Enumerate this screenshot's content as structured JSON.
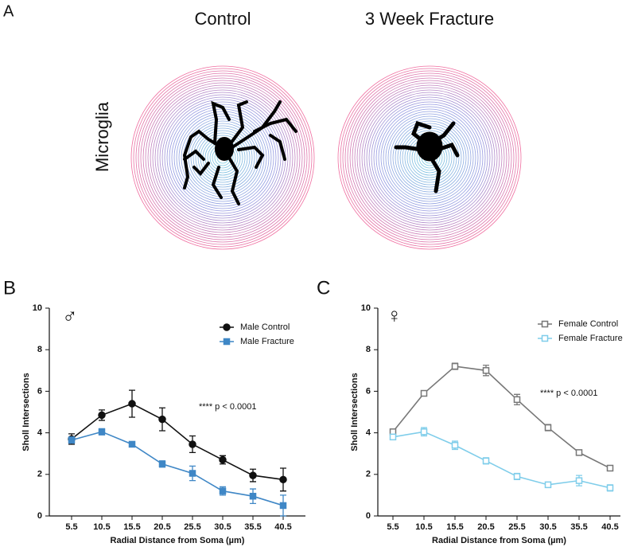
{
  "figure": {
    "panel_a": {
      "label": "A",
      "columns": [
        "Control",
        "3 Week Fracture"
      ],
      "row_label": "Microglia"
    }
  },
  "chart_data": [
    {
      "type": "line",
      "panel_label": "B",
      "symbol": "♂",
      "categories": [
        "5.5",
        "10.5",
        "15.5",
        "20.5",
        "25.5",
        "30.5",
        "35.5",
        "40.5"
      ],
      "xlabel": "Radial Distance from Soma (µm)",
      "ylabel": "Sholl Intersections",
      "ylim": [
        0,
        10
      ],
      "yticks": [
        0,
        2,
        4,
        6,
        8,
        10
      ],
      "annotation": "**** p < 0.0001",
      "series": [
        {
          "name": "Male Control",
          "color": "#111111",
          "marker": "circle",
          "hollow": false,
          "values": [
            3.7,
            4.85,
            5.4,
            4.65,
            3.45,
            2.7,
            1.95,
            1.75
          ],
          "errors": [
            0.25,
            0.25,
            0.65,
            0.55,
            0.4,
            0.2,
            0.3,
            0.55
          ]
        },
        {
          "name": "Male Fracture",
          "color": "#3f87c6",
          "marker": "square",
          "hollow": false,
          "values": [
            3.65,
            4.05,
            3.45,
            2.5,
            2.05,
            1.2,
            0.95,
            0.5
          ],
          "errors": [
            0.15,
            0.15,
            0.1,
            0.15,
            0.35,
            0.2,
            0.35,
            0.5
          ]
        }
      ]
    },
    {
      "type": "line",
      "panel_label": "C",
      "symbol": "♀",
      "categories": [
        "5.5",
        "10.5",
        "15.5",
        "20.5",
        "25.5",
        "30.5",
        "35.5",
        "40.5"
      ],
      "xlabel": "Radial Distance from Soma (µm)",
      "ylabel": "Sholl Intersections",
      "ylim": [
        0,
        10
      ],
      "yticks": [
        0,
        2,
        4,
        6,
        8,
        10
      ],
      "annotation": "**** p < 0.0001",
      "series": [
        {
          "name": "Female Control",
          "color": "#777777",
          "marker": "square",
          "hollow": true,
          "values": [
            4.05,
            5.9,
            7.2,
            7.0,
            5.6,
            4.25,
            3.05,
            2.3
          ],
          "errors": [
            0.1,
            0.1,
            0.15,
            0.25,
            0.25,
            0.15,
            0.1,
            0.1
          ]
        },
        {
          "name": "Female Fracture",
          "color": "#7fcdea",
          "marker": "square",
          "hollow": true,
          "values": [
            3.8,
            4.05,
            3.4,
            2.65,
            1.9,
            1.5,
            1.7,
            1.35
          ],
          "errors": [
            0.1,
            0.2,
            0.2,
            0.15,
            0.15,
            0.1,
            0.25,
            0.15
          ]
        }
      ]
    }
  ]
}
